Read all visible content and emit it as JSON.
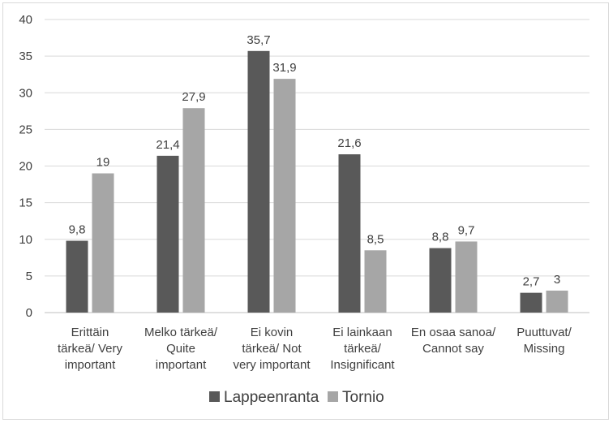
{
  "chart_data": {
    "type": "bar",
    "title": "",
    "xlabel": "",
    "ylabel": "",
    "ylim": [
      0,
      40
    ],
    "yticks": [
      0,
      5,
      10,
      15,
      20,
      25,
      30,
      35,
      40
    ],
    "grid": true,
    "legend_position": "bottom",
    "categories": [
      [
        "Erittäin",
        "tärkeä/ Very",
        "important"
      ],
      [
        "Melko tärkeä/",
        "Quite",
        "important"
      ],
      [
        "Ei kovin",
        "tärkeä/ Not",
        "very important"
      ],
      [
        "Ei lainkaan",
        "tärkeä/",
        "Insignificant"
      ],
      [
        "En osaa sanoa/",
        "Cannot say"
      ],
      [
        "Puuttuvat/",
        "Missing"
      ]
    ],
    "series": [
      {
        "name": "Lappeenranta",
        "color": "#595959",
        "values": [
          9.8,
          21.4,
          35.7,
          21.6,
          8.8,
          2.7
        ],
        "labels": [
          "9,8",
          "21,4",
          "35,7",
          "21,6",
          "8,8",
          "2,7"
        ]
      },
      {
        "name": "Tornio",
        "color": "#a6a6a6",
        "values": [
          19,
          27.9,
          31.9,
          8.5,
          9.7,
          3
        ],
        "labels": [
          "19",
          "27,9",
          "31,9",
          "8,5",
          "9,7",
          "3"
        ]
      }
    ],
    "gridline_color": "#d9d9d9",
    "text_color": "#404040"
  }
}
